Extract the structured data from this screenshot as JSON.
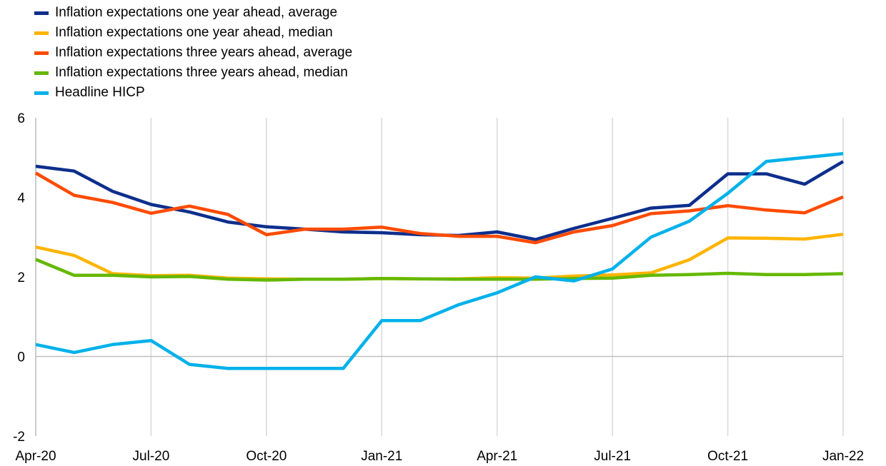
{
  "chart_data": {
    "type": "line",
    "title": "",
    "xlabel": "",
    "ylabel": "",
    "ylim": [
      -2,
      6
    ],
    "yticks": [
      "-2",
      "0",
      "2",
      "4",
      "6"
    ],
    "xtick_labels": [
      {
        "index": 0,
        "label": "Apr-20"
      },
      {
        "index": 3,
        "label": "Jul-20"
      },
      {
        "index": 6,
        "label": "Oct-20"
      },
      {
        "index": 9,
        "label": "Jan-21"
      },
      {
        "index": 12,
        "label": "Apr-21"
      },
      {
        "index": 15,
        "label": "Jul-21"
      },
      {
        "index": 18,
        "label": "Oct-21"
      },
      {
        "index": 21,
        "label": "Jan-22"
      }
    ],
    "x": [
      "Apr-20",
      "May-20",
      "Jun-20",
      "Jul-20",
      "Aug-20",
      "Sep-20",
      "Oct-20",
      "Nov-20",
      "Dec-20",
      "Jan-21",
      "Feb-21",
      "Mar-21",
      "Apr-21",
      "May-21",
      "Jun-21",
      "Jul-21",
      "Aug-21",
      "Sep-21",
      "Oct-21",
      "Nov-21",
      "Dec-21",
      "Jan-22"
    ],
    "grid": "vertical",
    "legend_position": "top-left",
    "series": [
      {
        "name": "Inflation expectations one year ahead, average",
        "color": "#0d2e8c",
        "values": [
          4.78,
          4.66,
          4.15,
          3.82,
          3.63,
          3.38,
          3.26,
          3.2,
          3.13,
          3.11,
          3.06,
          3.04,
          3.13,
          2.94,
          3.22,
          3.47,
          3.73,
          3.8,
          4.59,
          4.59,
          4.33,
          4.9
        ]
      },
      {
        "name": "Inflation expectations one year ahead, median",
        "color": "#ffb400",
        "values": [
          2.75,
          2.54,
          2.08,
          2.03,
          2.04,
          1.97,
          1.95,
          1.94,
          1.94,
          1.96,
          1.95,
          1.95,
          1.98,
          1.97,
          2.02,
          2.05,
          2.1,
          2.43,
          2.98,
          2.97,
          2.95,
          3.07
        ]
      },
      {
        "name": "Inflation expectations three years ahead, average",
        "color": "#ff4b00",
        "values": [
          4.61,
          4.05,
          3.87,
          3.6,
          3.78,
          3.57,
          3.06,
          3.2,
          3.2,
          3.25,
          3.09,
          3.02,
          3.02,
          2.86,
          3.13,
          3.29,
          3.59,
          3.66,
          3.79,
          3.68,
          3.61,
          4.01
        ]
      },
      {
        "name": "Inflation expectations three years ahead, median",
        "color": "#65b800",
        "values": [
          2.44,
          2.04,
          2.04,
          2.0,
          2.01,
          1.94,
          1.92,
          1.94,
          1.94,
          1.96,
          1.95,
          1.94,
          1.94,
          1.94,
          1.96,
          1.97,
          2.04,
          2.06,
          2.09,
          2.06,
          2.06,
          2.08
        ]
      },
      {
        "name": "Headline HICP",
        "color": "#00b1ea",
        "values": [
          0.3,
          0.1,
          0.3,
          0.4,
          -0.2,
          -0.3,
          -0.3,
          -0.3,
          -0.3,
          0.9,
          0.9,
          1.3,
          1.6,
          2.0,
          1.9,
          2.2,
          3.0,
          3.4,
          4.1,
          4.9,
          5.0,
          5.1
        ]
      }
    ]
  }
}
